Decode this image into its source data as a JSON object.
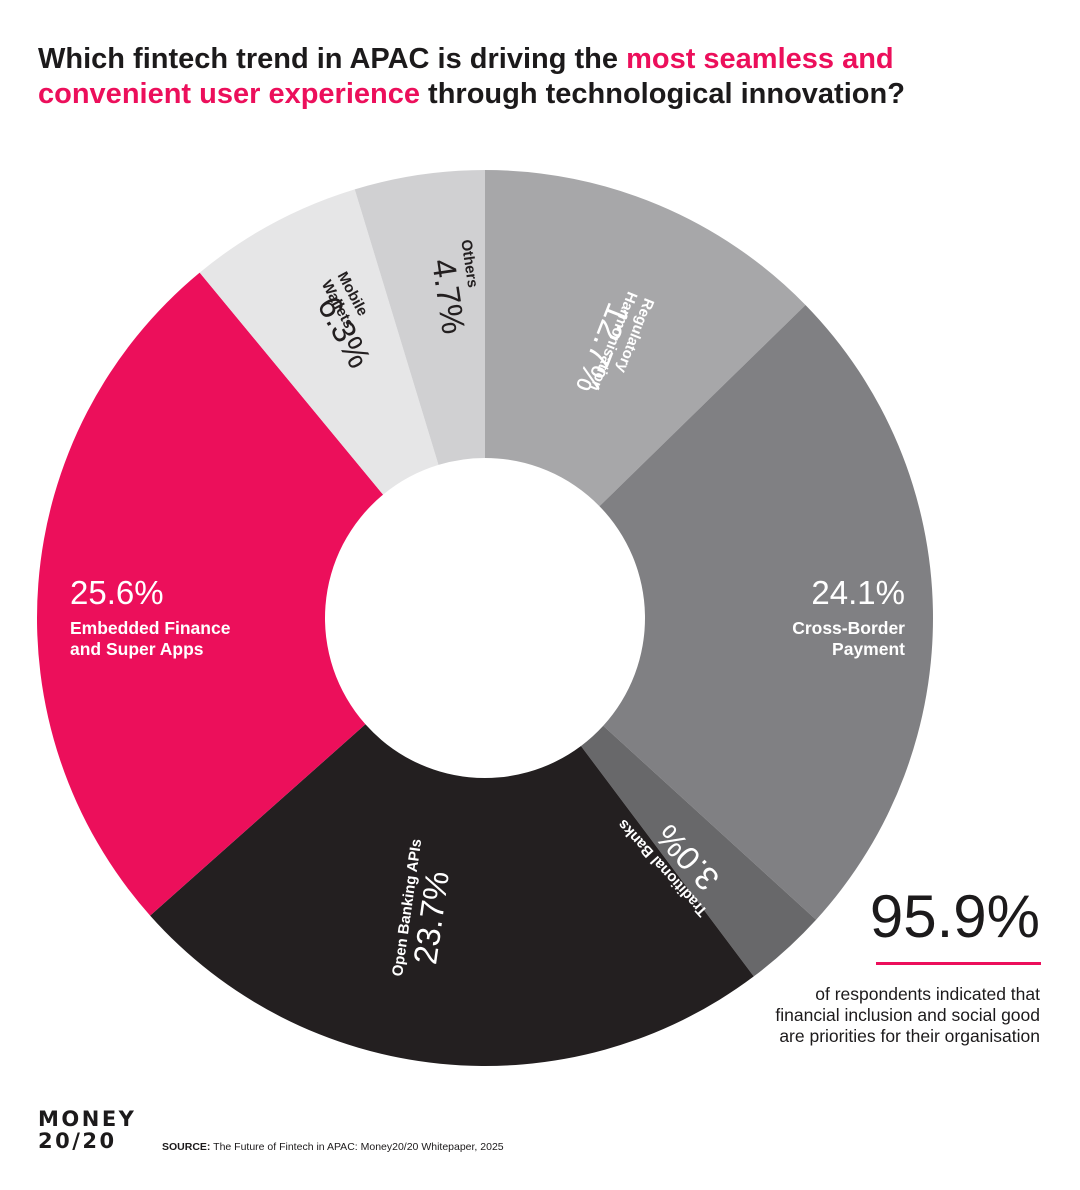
{
  "title": {
    "part1": "Which fintech trend in APAC is driving the ",
    "highlight": "most seamless and convenient user experience",
    "part2": " through technological innovation?"
  },
  "colors": {
    "accent": "#ec0f5b",
    "dark": "#231f20",
    "text": "#1c1a1b"
  },
  "chart_data": {
    "type": "pie",
    "variant": "donut",
    "start": "12 o'clock",
    "direction": "clockwise",
    "slices": [
      {
        "label": "Regulatory Harmonisation",
        "value": 12.7,
        "value_label": "12.7%",
        "color": "#a7a7a9"
      },
      {
        "label": "Cross-Border Payment",
        "value": 24.1,
        "value_label": "24.1%",
        "color": "#808083"
      },
      {
        "label": "Traditional Banks",
        "value": 3.0,
        "value_label": "3.0%",
        "color": "#68686a"
      },
      {
        "label": "Open Banking APIs",
        "value": 23.7,
        "value_label": "23.7%",
        "color": "#231f20"
      },
      {
        "label": "Embedded Finance and Super Apps",
        "value": 25.6,
        "value_label": "25.6%",
        "color": "#ec0f5b"
      },
      {
        "label": "Mobile Wallets",
        "value": 6.3,
        "value_label": "6.3%",
        "color": "#e6e6e7"
      },
      {
        "label": "Others",
        "value": 4.7,
        "value_label": "4.7%",
        "color": "#d0d0d2"
      }
    ]
  },
  "stat": {
    "value": "95.9%",
    "text": "of respondents indicated that financial inclusion and social good are priorities for their organisation"
  },
  "logo": {
    "line1": "MONEY",
    "line2": "20/20"
  },
  "source": {
    "label": "SOURCE:",
    "text": " The Future of Fintech in APAC: Money20/20 Whitepaper, 2025"
  }
}
